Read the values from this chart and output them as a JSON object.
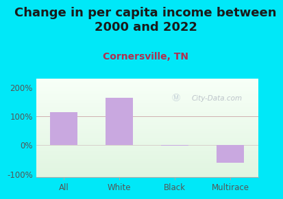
{
  "title": "Change in per capita income between\n2000 and 2022",
  "subtitle": "Cornersville, TN",
  "categories": [
    "All",
    "White",
    "Black",
    "Multirace"
  ],
  "values": [
    115,
    165,
    -2,
    -60
  ],
  "bar_color": "#c9a8e0",
  "title_fontsize": 13,
  "subtitle_fontsize": 10,
  "subtitle_color": "#b03050",
  "title_color": "#1a1a1a",
  "background_outer": "#00e8f8",
  "ylim": [
    -110,
    230
  ],
  "yticks": [
    -100,
    0,
    100,
    200
  ],
  "tick_label_color": "#555555",
  "tick_fontsize": 8.5,
  "watermark": "City-Data.com",
  "gridline_100_color": "#d0b0b0",
  "gridline_0_color": "#d0c0c0",
  "bar_width": 0.5
}
